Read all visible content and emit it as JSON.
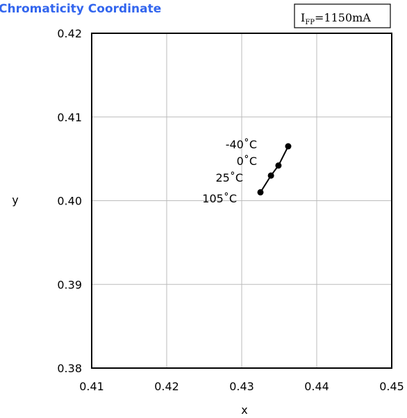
{
  "chart_data": {
    "type": "line",
    "title": "Chromaticity Coordinate",
    "xlabel": "x",
    "ylabel": "y",
    "xlim": [
      0.41,
      0.45
    ],
    "ylim": [
      0.38,
      0.42
    ],
    "xticks": [
      "0.41",
      "0.42",
      "0.43",
      "0.44",
      "0.45"
    ],
    "yticks": [
      "0.38",
      "0.39",
      "0.40",
      "0.41",
      "0.42"
    ],
    "grid": true,
    "legend_box": {
      "main": "I",
      "sub": "FP",
      "rest": "=1150mA"
    },
    "series": [
      {
        "points": [
          {
            "x": 0.4362,
            "y": 0.4065,
            "label": "-40˚C"
          },
          {
            "x": 0.4349,
            "y": 0.4042,
            "label": "0˚C"
          },
          {
            "x": 0.4339,
            "y": 0.403,
            "label": "25˚C"
          },
          {
            "x": 0.4325,
            "y": 0.401,
            "label": "105˚C"
          }
        ]
      }
    ],
    "colors": {
      "title": "#3366ee",
      "line": "#000000",
      "grid": "#bbbbbb"
    }
  }
}
